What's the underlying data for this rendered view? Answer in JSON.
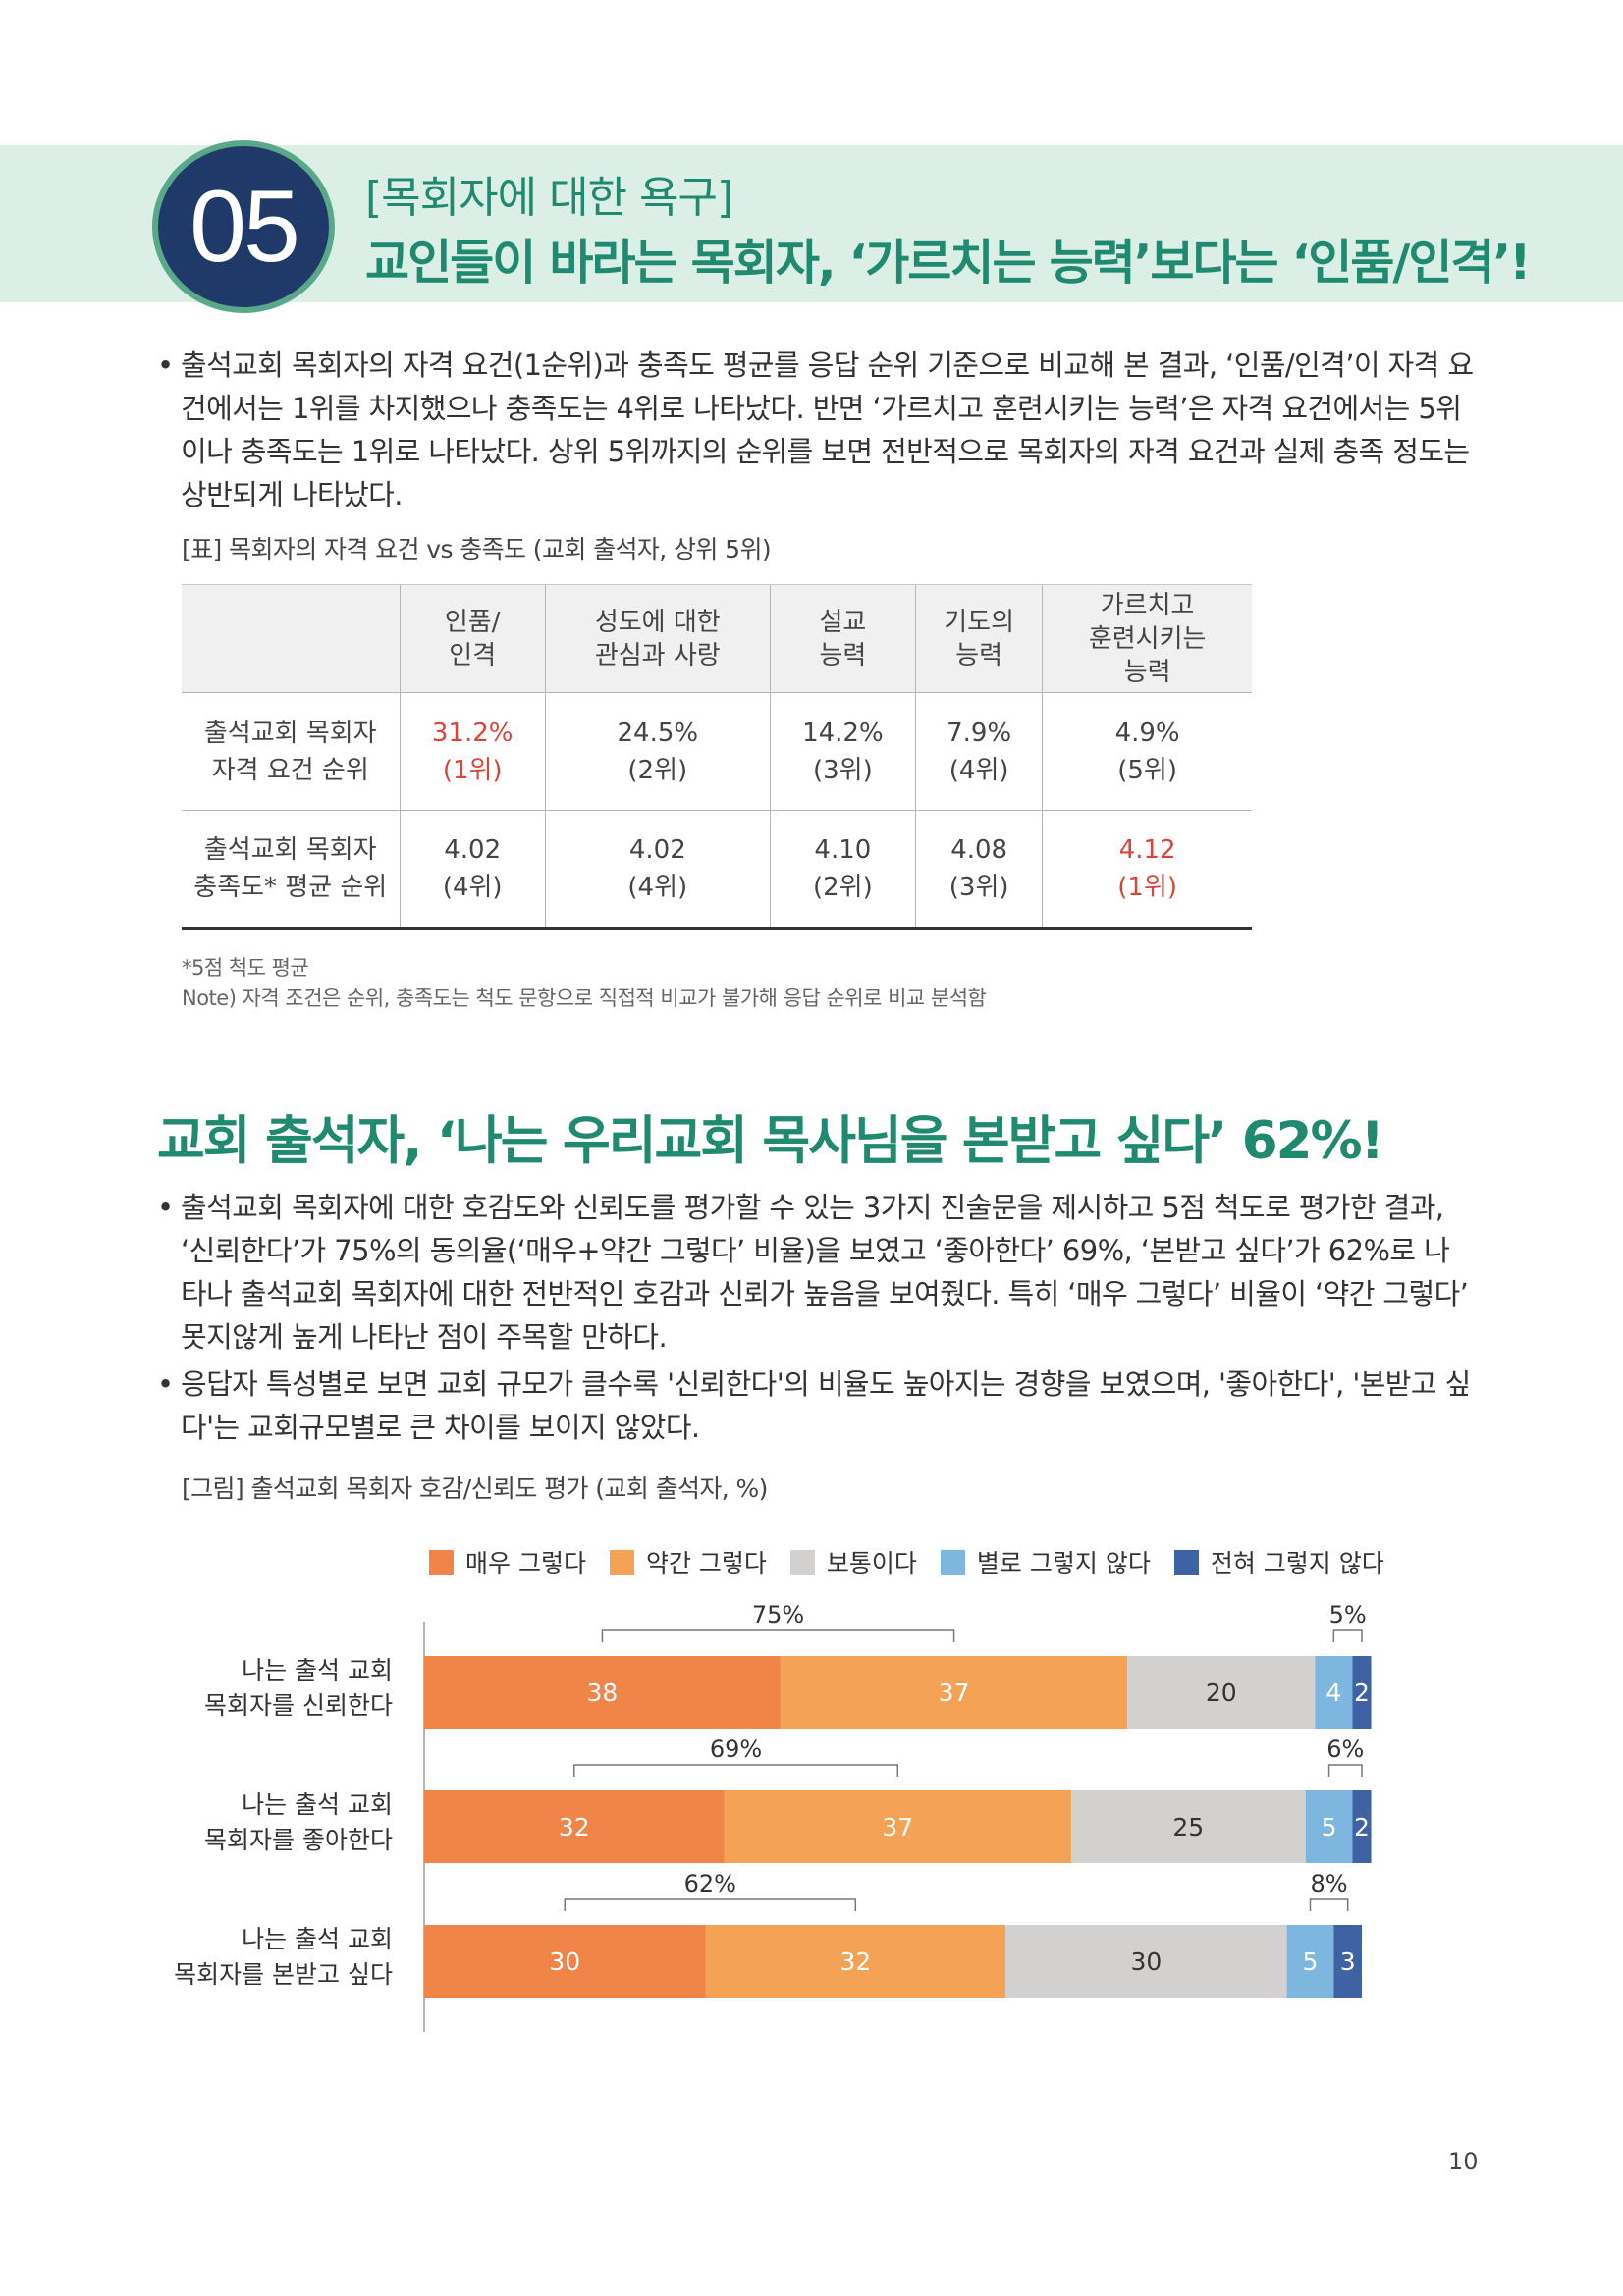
{
  "header": {
    "number": "05",
    "subtitle": "[목회자에 대한 욕구]",
    "title": "교인들이 바라는 목회자, ‘가르치는 능력’보다는 ‘인품/인격’!"
  },
  "intro_paragraph": "출석교회 목회자의 자격 요건(1순위)과 충족도 평균를 응답 순위 기준으로 비교해 본 결과, ‘인품/인격’이 자격 요건에서는 1위를 차지했으나 충족도는 4위로 나타났다. 반면 ‘가르치고 훈련시키는 능력’은 자격 요건에서는 5위이나 충족도는 1위로 나타났다. 상위 5위까지의 순위를 보면 전반적으로 목회자의 자격 요건과 실제 충족 정도는 상반되게 나타났다.",
  "table_caption": "[표] 목회자의 자격 요건 vs 충족도 (교회 출석자, 상위 5위)",
  "table": {
    "headers": [
      [
        "인품/",
        "인격"
      ],
      [
        "성도에 대한",
        "관심과 사랑"
      ],
      [
        "설교",
        "능력"
      ],
      [
        "기도의",
        "능력"
      ],
      [
        "가르치고",
        "훈련시키는",
        "능력"
      ]
    ],
    "rows": [
      {
        "label": [
          "출석교회 목회자",
          "자격 요건 순위"
        ],
        "cells": [
          [
            "31.2%",
            "(1위)"
          ],
          [
            "24.5%",
            "(2위)"
          ],
          [
            "14.2%",
            "(3위)"
          ],
          [
            "7.9%",
            "(4위)"
          ],
          [
            "4.9%",
            "(5위)"
          ]
        ],
        "highlight_index": 0
      },
      {
        "label": [
          "출석교회 목회자",
          "충족도* 평균 순위"
        ],
        "cells": [
          [
            "4.02",
            "(4위)"
          ],
          [
            "4.02",
            "(4위)"
          ],
          [
            "4.10",
            "(2위)"
          ],
          [
            "4.08",
            "(3위)"
          ],
          [
            "4.12",
            "(1위)"
          ]
        ],
        "highlight_index": 4
      }
    ]
  },
  "notes": [
    "*5점 척도 평균",
    "Note) 자격 조건은 순위, 충족도는 척도 문항으로 직접적 비교가 불가해 응답 순위로 비교 분석함"
  ],
  "section2_title": "교회 출석자, ‘나는 우리교회 목사님을 본받고 싶다’ 62%!",
  "bullets": [
    "출석교회 목회자에 대한 호감도와 신뢰도를 평가할 수 있는 3가지 진술문을 제시하고 5점 척도로 평가한 결과, ‘신뢰한다’가 75%의 동의율(‘매우+약간 그렇다’ 비율)을 보였고 ‘좋아한다’ 69%, ‘본받고 싶다’가 62%로 나타나 출석교회 목회자에 대한 전반적인 호감과 신뢰가 높음을 보여줬다. 특히 ‘매우 그렇다’ 비율이 ‘약간 그렇다’ 못지않게 높게 나타난 점이 주목할 만하다.",
    "응답자 특성별로 보면 교회 규모가 클수록 '신뢰한다'의 비율도 높아지는 경향을 보였으며, '좋아한다', '본받고 싶다'는 교회규모별로 큰 차이를 보이지 않았다."
  ],
  "figure_caption": "[그림] 출석교회 목회자 호감/신뢰도 평가 (교회 출석자, %)",
  "bullet_glyph": "•",
  "page_number": "10",
  "chart_data": {
    "type": "bar",
    "orientation": "horizontal-stacked",
    "categories": [
      [
        "나는 출석 교회",
        "목회자를 신뢰한다"
      ],
      [
        "나는 출석 교회",
        "목회자를 좋아한다"
      ],
      [
        "나는 출석 교회",
        "목회자를 본받고 싶다"
      ]
    ],
    "series": [
      {
        "name": "매우 그렇다",
        "color": "#ef8548",
        "values": [
          38,
          32,
          30
        ]
      },
      {
        "name": "약간 그렇다",
        "color": "#f4a255",
        "values": [
          37,
          37,
          32
        ]
      },
      {
        "name": "보통이다",
        "color": "#d2d1d0",
        "values": [
          20,
          25,
          30
        ]
      },
      {
        "name": "별로 그렇지 않다",
        "color": "#7db6de",
        "values": [
          4,
          5,
          5
        ]
      },
      {
        "name": "전혀 그렇지 않다",
        "color": "#3f62a4",
        "values": [
          2,
          2,
          3
        ]
      }
    ],
    "agree_totals": [
      "75%",
      "69%",
      "62%"
    ],
    "disagree_totals": [
      "5%",
      "6%",
      "8%"
    ],
    "legend_position": "top"
  }
}
